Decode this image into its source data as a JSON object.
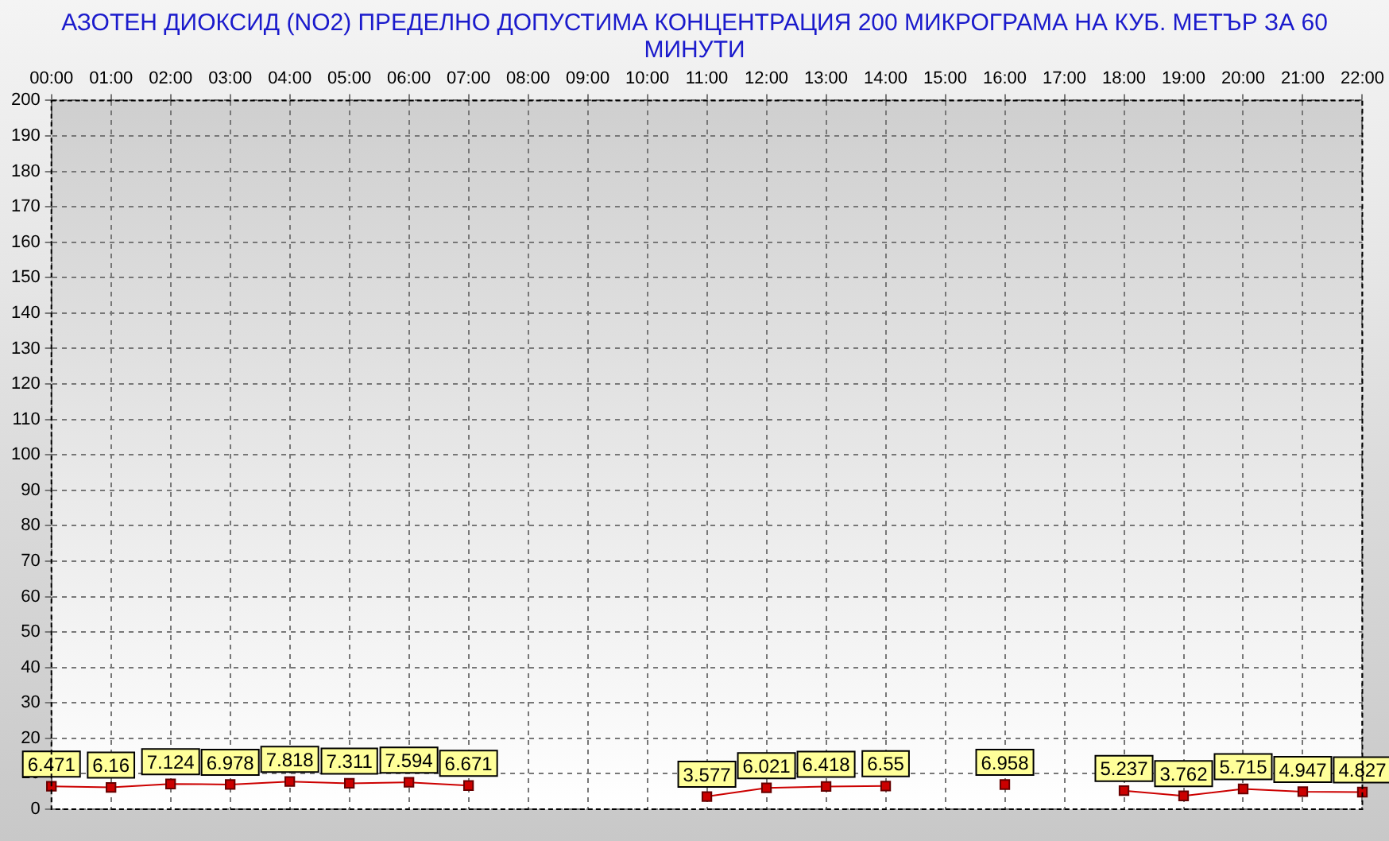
{
  "chart_data": {
    "type": "line",
    "title": "АЗОТЕН ДИОКСИД   (NO2)     ПРЕДЕЛНО ДОПУСТИМА КОНЦЕНТРАЦИЯ 200 МИКРОГРАМА  НА КУБ. МЕТЪР ЗА 60 МИНУТИ",
    "categories": [
      "00:00",
      "01:00",
      "02:00",
      "03:00",
      "04:00",
      "05:00",
      "06:00",
      "07:00",
      "08:00",
      "09:00",
      "10:00",
      "11:00",
      "12:00",
      "13:00",
      "14:00",
      "15:00",
      "16:00",
      "17:00",
      "18:00",
      "19:00",
      "20:00",
      "21:00",
      "22:00"
    ],
    "series": [
      {
        "color": "#cc0000",
        "values": [
          6.471,
          6.16,
          7.124,
          6.978,
          7.818,
          7.311,
          7.594,
          6.671,
          null,
          null,
          null,
          3.577,
          6.021,
          6.418,
          6.55,
          null,
          6.958,
          null,
          5.237,
          3.762,
          5.715,
          4.947,
          4.827
        ]
      }
    ],
    "ylim": [
      0,
      200
    ],
    "yticks": [
      0,
      10,
      20,
      30,
      40,
      50,
      60,
      70,
      80,
      90,
      100,
      110,
      120,
      130,
      140,
      150,
      160,
      170,
      180,
      190,
      200
    ],
    "grid": true,
    "marker": "square",
    "line_style": "solid",
    "data_labels": true
  }
}
